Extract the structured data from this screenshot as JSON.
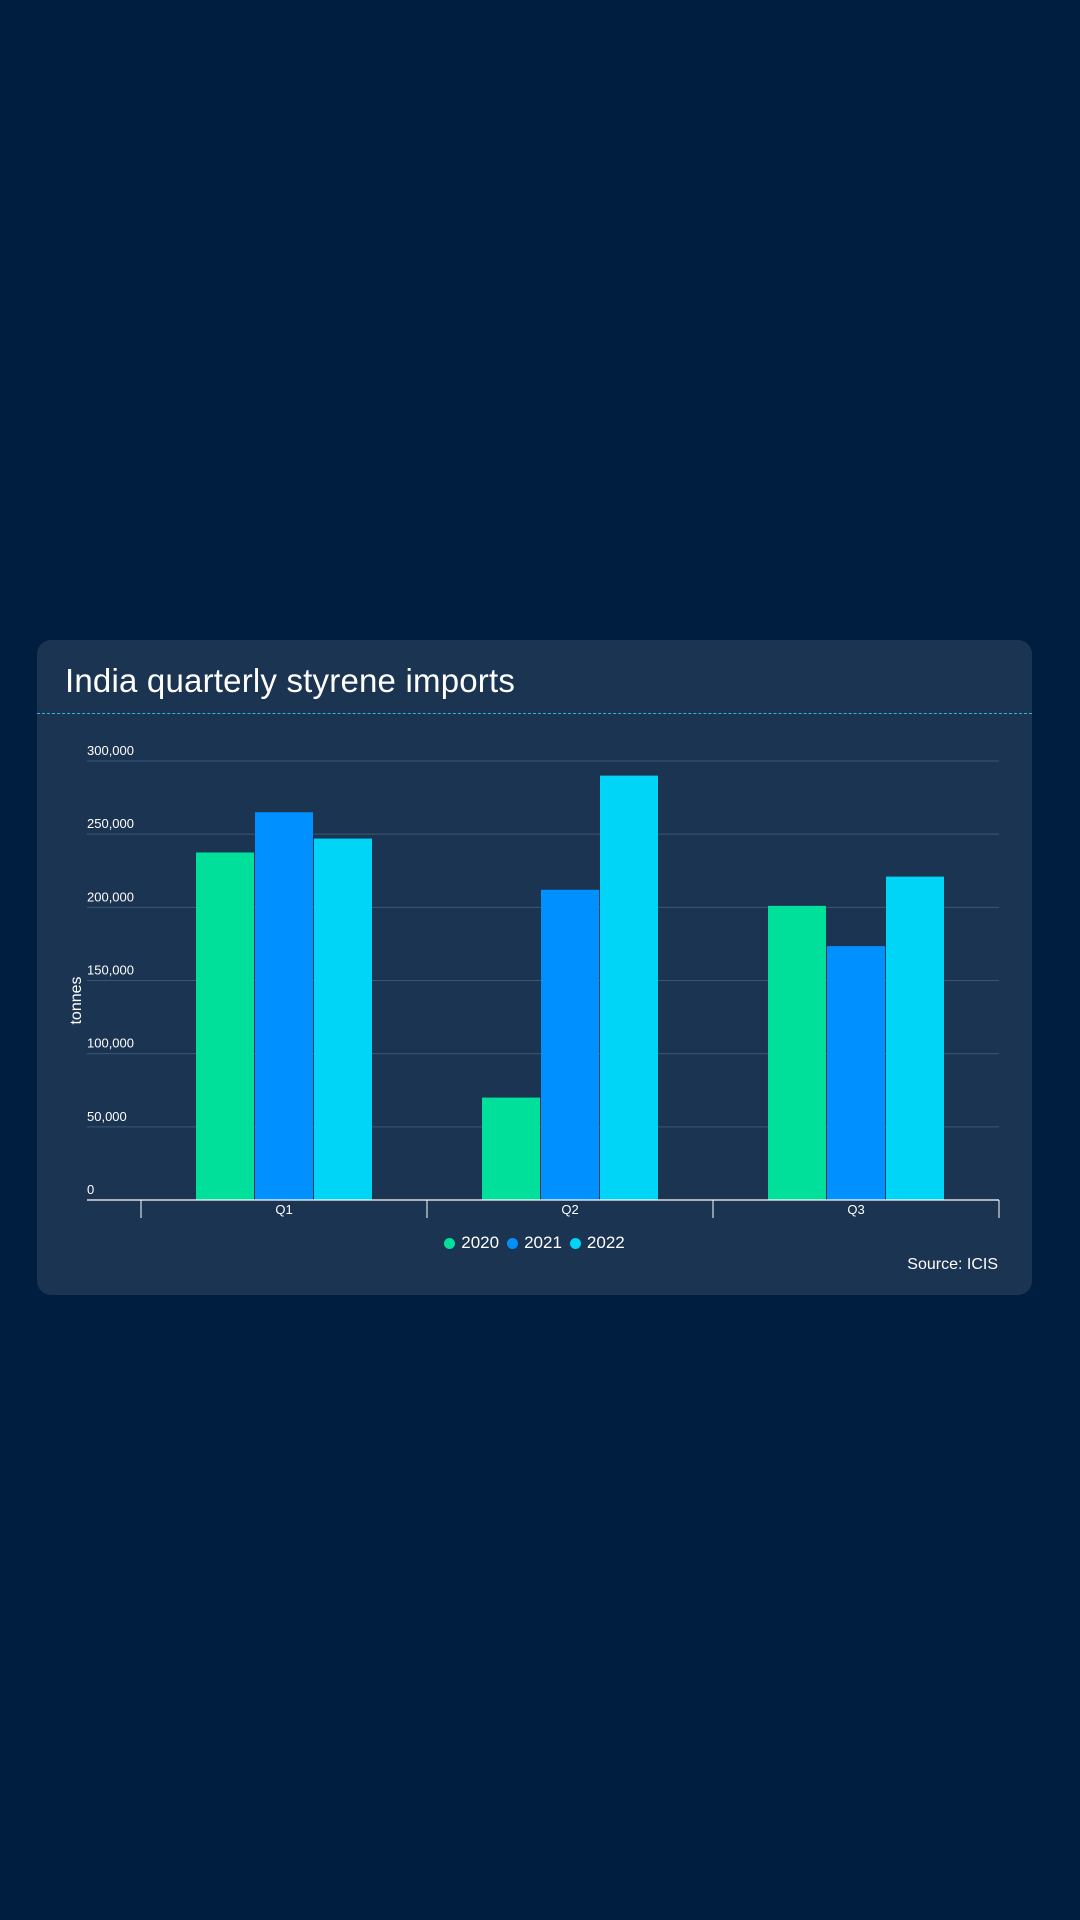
{
  "card": {
    "title": "India quarterly styrene imports",
    "source": "Source: ICIS"
  },
  "colors": {
    "background": "#001e3f",
    "card": "#1b3452",
    "series_2020": "#00e09a",
    "series_2021": "#0090ff",
    "series_2022": "#00d5f8"
  },
  "chart_data": {
    "type": "bar",
    "title": "India quarterly styrene imports",
    "xlabel": "",
    "ylabel": "tonnes",
    "categories": [
      "Q1",
      "Q2",
      "Q3"
    ],
    "series": [
      {
        "name": "2020",
        "color": "#00e09a",
        "values": [
          237500,
          70000,
          201000
        ]
      },
      {
        "name": "2021",
        "color": "#0090ff",
        "values": [
          265000,
          212000,
          173500
        ]
      },
      {
        "name": "2022",
        "color": "#00d5f8",
        "values": [
          247000,
          290000,
          221000
        ]
      }
    ],
    "ylim": [
      0,
      300000
    ],
    "yticks": [
      0,
      50000,
      100000,
      150000,
      200000,
      250000,
      300000
    ],
    "ytick_labels": [
      "0",
      "50,000",
      "100,000",
      "150,000",
      "200,000",
      "250,000",
      "300,000"
    ],
    "grid": true,
    "legend": "bottom-center"
  }
}
